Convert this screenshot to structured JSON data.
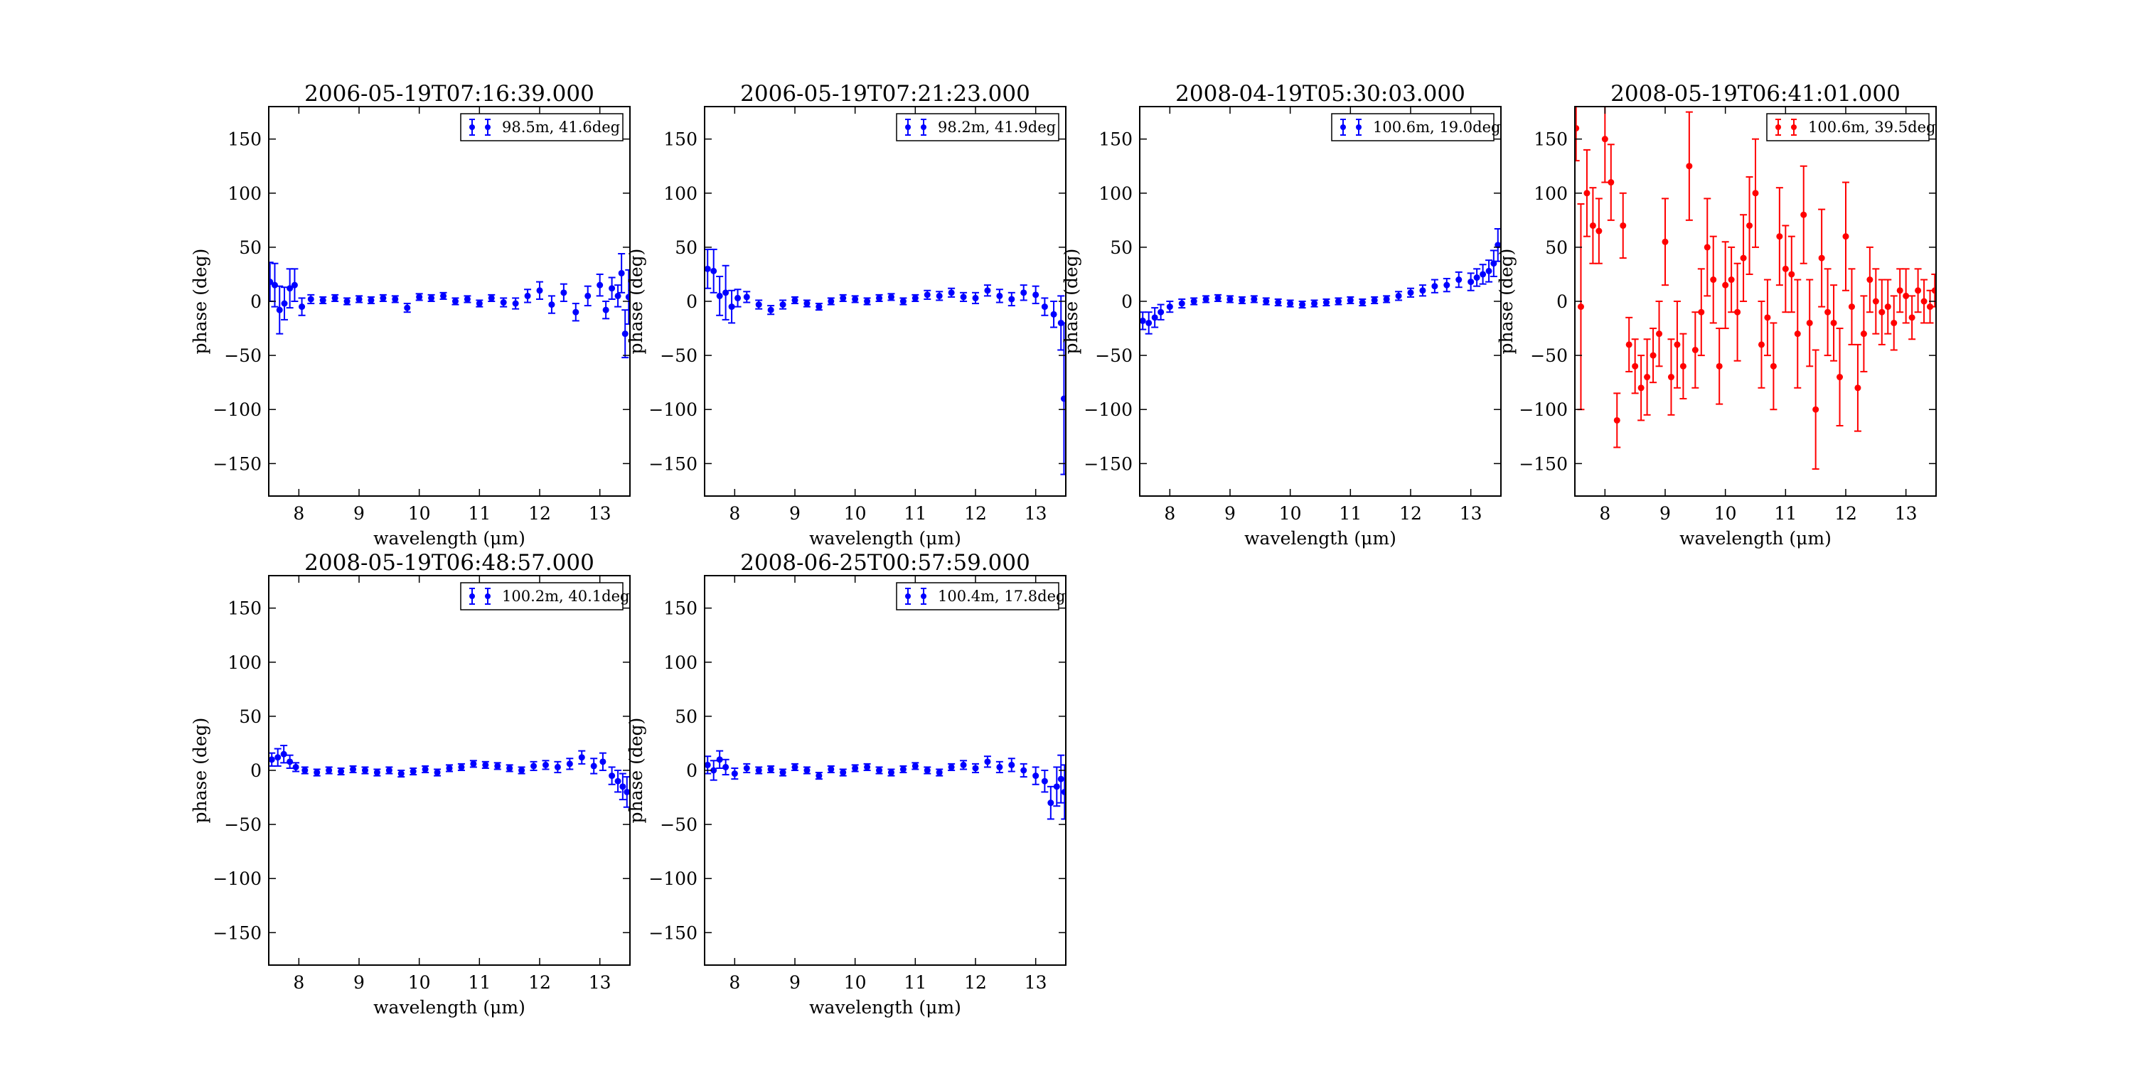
{
  "figure": {
    "xlabel": "wavelength (μm)",
    "ylabel": "phase (deg)"
  },
  "colors": {
    "blue": "#0000ff",
    "red": "#ff0000"
  },
  "chart_data": [
    {
      "type": "scatter",
      "title": "2006-05-19T07:16:39.000",
      "xlabel": "wavelength (μm)",
      "ylabel": "phase (deg)",
      "xlim": [
        7.5,
        13.5
      ],
      "ylim": [
        -180,
        180
      ],
      "xticks": [
        8,
        9,
        10,
        11,
        12,
        13
      ],
      "yticks": [
        150,
        100,
        50,
        0,
        -50,
        -100,
        -150
      ],
      "grid": false,
      "legend_position": "top-right",
      "color": "#0000ff",
      "series": [
        {
          "name": "98.5m, 41.6deg",
          "x": [
            7.52,
            7.6,
            7.68,
            7.76,
            7.85,
            7.93,
            8.05,
            8.2,
            8.4,
            8.6,
            8.8,
            9.0,
            9.2,
            9.4,
            9.6,
            9.8,
            10.0,
            10.2,
            10.4,
            10.6,
            10.8,
            11.0,
            11.2,
            11.4,
            11.6,
            11.8,
            12.0,
            12.2,
            12.4,
            12.6,
            12.8,
            13.0,
            13.1,
            13.2,
            13.3,
            13.36,
            13.42,
            13.48
          ],
          "y": [
            18,
            15,
            -8,
            -2,
            12,
            15,
            -5,
            2,
            1,
            3,
            0,
            2,
            1,
            3,
            2,
            -6,
            4,
            3,
            5,
            0,
            2,
            -2,
            3,
            -1,
            -2,
            5,
            10,
            -3,
            8,
            -10,
            5,
            15,
            -8,
            12,
            5,
            26,
            -30,
            4
          ],
          "err": [
            18,
            20,
            22,
            15,
            18,
            15,
            8,
            4,
            3,
            3,
            3,
            3,
            3,
            3,
            3,
            4,
            3,
            3,
            3,
            3,
            3,
            3,
            3,
            4,
            5,
            6,
            8,
            8,
            8,
            8,
            9,
            10,
            8,
            10,
            10,
            18,
            22,
            25
          ]
        }
      ]
    },
    {
      "type": "scatter",
      "title": "2006-05-19T07:21:23.000",
      "xlabel": "wavelength (μm)",
      "ylabel": "phase (deg)",
      "xlim": [
        7.5,
        13.5
      ],
      "ylim": [
        -180,
        180
      ],
      "xticks": [
        8,
        9,
        10,
        11,
        12,
        13
      ],
      "yticks": [
        150,
        100,
        50,
        0,
        -50,
        -100,
        -150
      ],
      "grid": false,
      "legend_position": "top-right",
      "color": "#0000ff",
      "series": [
        {
          "name": "98.2m, 41.9deg",
          "x": [
            7.55,
            7.65,
            7.75,
            7.85,
            7.95,
            8.05,
            8.2,
            8.4,
            8.6,
            8.8,
            9.0,
            9.2,
            9.4,
            9.6,
            9.8,
            10.0,
            10.2,
            10.4,
            10.6,
            10.8,
            11.0,
            11.2,
            11.4,
            11.6,
            11.8,
            12.0,
            12.2,
            12.4,
            12.6,
            12.8,
            13.0,
            13.15,
            13.3,
            13.42,
            13.47
          ],
          "y": [
            30,
            28,
            5,
            8,
            -5,
            3,
            4,
            -3,
            -8,
            -3,
            1,
            -2,
            -5,
            0,
            3,
            2,
            0,
            3,
            4,
            0,
            3,
            6,
            5,
            8,
            4,
            3,
            10,
            5,
            2,
            8,
            6,
            -5,
            -12,
            -20,
            -90
          ],
          "err": [
            18,
            20,
            18,
            25,
            15,
            8,
            5,
            4,
            4,
            4,
            3,
            3,
            3,
            3,
            3,
            3,
            3,
            3,
            3,
            3,
            3,
            4,
            4,
            4,
            4,
            5,
            5,
            6,
            6,
            7,
            8,
            8,
            12,
            25,
            70
          ]
        }
      ]
    },
    {
      "type": "scatter",
      "title": "2008-04-19T05:30:03.000",
      "xlabel": "wavelength (μm)",
      "ylabel": "phase (deg)",
      "xlim": [
        7.5,
        13.5
      ],
      "ylim": [
        -180,
        180
      ],
      "xticks": [
        8,
        9,
        10,
        11,
        12,
        13
      ],
      "yticks": [
        150,
        100,
        50,
        0,
        -50,
        -100,
        -150
      ],
      "grid": false,
      "legend_position": "top-right",
      "color": "#0000ff",
      "series": [
        {
          "name": "100.6m, 19.0deg",
          "x": [
            7.55,
            7.65,
            7.75,
            7.85,
            8.0,
            8.2,
            8.4,
            8.6,
            8.8,
            9.0,
            9.2,
            9.4,
            9.6,
            9.8,
            10.0,
            10.2,
            10.4,
            10.6,
            10.8,
            11.0,
            11.2,
            11.4,
            11.6,
            11.8,
            12.0,
            12.2,
            12.4,
            12.6,
            12.8,
            13.0,
            13.1,
            13.2,
            13.3,
            13.38,
            13.45
          ],
          "y": [
            -18,
            -20,
            -15,
            -10,
            -5,
            -2,
            0,
            2,
            3,
            2,
            1,
            2,
            0,
            -1,
            -2,
            -3,
            -2,
            -1,
            0,
            1,
            -1,
            1,
            2,
            5,
            8,
            10,
            14,
            15,
            20,
            18,
            22,
            25,
            28,
            35,
            52
          ],
          "err": [
            8,
            10,
            9,
            7,
            5,
            4,
            3,
            3,
            3,
            3,
            3,
            3,
            3,
            3,
            3,
            3,
            3,
            3,
            3,
            3,
            3,
            3,
            3,
            4,
            4,
            5,
            6,
            6,
            7,
            8,
            8,
            9,
            10,
            12,
            15
          ]
        }
      ]
    },
    {
      "type": "scatter",
      "title": "2008-05-19T06:41:01.000",
      "xlabel": "wavelength (μm)",
      "ylabel": "phase (deg)",
      "xlim": [
        7.5,
        13.5
      ],
      "ylim": [
        -180,
        180
      ],
      "xticks": [
        8,
        9,
        10,
        11,
        12,
        13
      ],
      "yticks": [
        150,
        100,
        50,
        0,
        -50,
        -100,
        -150
      ],
      "grid": false,
      "legend_position": "top-right",
      "color": "#ff0000",
      "series": [
        {
          "name": "100.6m, 39.5deg",
          "x": [
            7.52,
            7.6,
            7.7,
            7.8,
            7.9,
            8.0,
            8.1,
            8.2,
            8.3,
            8.4,
            8.5,
            8.6,
            8.7,
            8.8,
            8.9,
            9.0,
            9.1,
            9.2,
            9.3,
            9.4,
            9.5,
            9.6,
            9.7,
            9.8,
            9.9,
            10.0,
            10.1,
            10.2,
            10.3,
            10.4,
            10.5,
            10.6,
            10.7,
            10.8,
            10.9,
            11.0,
            11.1,
            11.2,
            11.3,
            11.4,
            11.5,
            11.6,
            11.7,
            11.8,
            11.9,
            12.0,
            12.1,
            12.2,
            12.3,
            12.4,
            12.5,
            12.6,
            12.7,
            12.8,
            12.9,
            13.0,
            13.1,
            13.2,
            13.3,
            13.4,
            13.48
          ],
          "y": [
            160,
            -5,
            100,
            70,
            65,
            150,
            110,
            -110,
            70,
            -40,
            -60,
            -80,
            -70,
            -50,
            -30,
            55,
            -70,
            -40,
            -60,
            125,
            -45,
            -10,
            50,
            20,
            -60,
            15,
            20,
            -10,
            40,
            70,
            100,
            -40,
            -15,
            -60,
            60,
            30,
            25,
            -30,
            80,
            -20,
            -100,
            40,
            -10,
            -20,
            -70,
            60,
            -5,
            -80,
            -30,
            20,
            0,
            -10,
            -5,
            -20,
            10,
            5,
            -15,
            10,
            0,
            -5,
            10
          ],
          "err": [
            30,
            95,
            40,
            35,
            30,
            40,
            35,
            25,
            30,
            25,
            25,
            30,
            35,
            25,
            30,
            40,
            35,
            40,
            30,
            50,
            35,
            40,
            45,
            40,
            35,
            40,
            30,
            45,
            40,
            45,
            50,
            40,
            35,
            40,
            45,
            40,
            35,
            50,
            45,
            40,
            55,
            45,
            40,
            35,
            45,
            50,
            35,
            40,
            35,
            30,
            30,
            30,
            25,
            25,
            20,
            25,
            20,
            20,
            20,
            15,
            15
          ]
        }
      ]
    },
    {
      "type": "scatter",
      "title": "2008-05-19T06:48:57.000",
      "xlabel": "wavelength (μm)",
      "ylabel": "phase (deg)",
      "xlim": [
        7.5,
        13.5
      ],
      "ylim": [
        -180,
        180
      ],
      "xticks": [
        8,
        9,
        10,
        11,
        12,
        13
      ],
      "yticks": [
        150,
        100,
        50,
        0,
        -50,
        -100,
        -150
      ],
      "grid": false,
      "legend_position": "top-right",
      "color": "#0000ff",
      "series": [
        {
          "name": "100.2m, 40.1deg",
          "x": [
            7.55,
            7.65,
            7.75,
            7.85,
            7.95,
            8.1,
            8.3,
            8.5,
            8.7,
            8.9,
            9.1,
            9.3,
            9.5,
            9.7,
            9.9,
            10.1,
            10.3,
            10.5,
            10.7,
            10.9,
            11.1,
            11.3,
            11.5,
            11.7,
            11.9,
            12.1,
            12.3,
            12.5,
            12.7,
            12.9,
            13.05,
            13.2,
            13.3,
            13.38,
            13.45
          ],
          "y": [
            10,
            12,
            15,
            8,
            3,
            0,
            -2,
            0,
            -1,
            1,
            0,
            -2,
            0,
            -3,
            -1,
            1,
            -2,
            2,
            3,
            6,
            5,
            4,
            2,
            0,
            4,
            5,
            3,
            6,
            12,
            4,
            8,
            -5,
            -10,
            -15,
            -20
          ],
          "err": [
            6,
            8,
            8,
            6,
            4,
            3,
            3,
            3,
            3,
            3,
            3,
            3,
            3,
            3,
            3,
            3,
            3,
            3,
            3,
            3,
            3,
            3,
            3,
            3,
            4,
            4,
            5,
            5,
            6,
            7,
            8,
            8,
            10,
            12,
            14
          ]
        }
      ]
    },
    {
      "type": "scatter",
      "title": "2008-06-25T00:57:59.000",
      "xlabel": "wavelength (μm)",
      "ylabel": "phase (deg)",
      "xlim": [
        7.5,
        13.5
      ],
      "ylim": [
        -180,
        180
      ],
      "xticks": [
        8,
        9,
        10,
        11,
        12,
        13
      ],
      "yticks": [
        150,
        100,
        50,
        0,
        -50,
        -100,
        -150
      ],
      "grid": false,
      "legend_position": "top-right",
      "color": "#0000ff",
      "series": [
        {
          "name": "100.4m, 17.8deg",
          "x": [
            7.55,
            7.65,
            7.75,
            7.85,
            8.0,
            8.2,
            8.4,
            8.6,
            8.8,
            9.0,
            9.2,
            9.4,
            9.6,
            9.8,
            10.0,
            10.2,
            10.4,
            10.6,
            10.8,
            11.0,
            11.2,
            11.4,
            11.6,
            11.8,
            12.0,
            12.2,
            12.4,
            12.6,
            12.8,
            13.0,
            13.15,
            13.25,
            13.35,
            13.42,
            13.48
          ],
          "y": [
            5,
            0,
            10,
            3,
            -3,
            2,
            0,
            1,
            -2,
            3,
            0,
            -5,
            1,
            -2,
            2,
            3,
            0,
            -2,
            1,
            4,
            0,
            -2,
            3,
            5,
            2,
            8,
            3,
            5,
            0,
            -5,
            -10,
            -30,
            -15,
            -8,
            -20
          ],
          "err": [
            8,
            9,
            8,
            7,
            5,
            4,
            3,
            3,
            3,
            3,
            3,
            3,
            3,
            3,
            3,
            3,
            3,
            3,
            3,
            3,
            3,
            3,
            3,
            4,
            4,
            5,
            5,
            6,
            6,
            8,
            10,
            15,
            18,
            22,
            25
          ]
        }
      ]
    }
  ]
}
